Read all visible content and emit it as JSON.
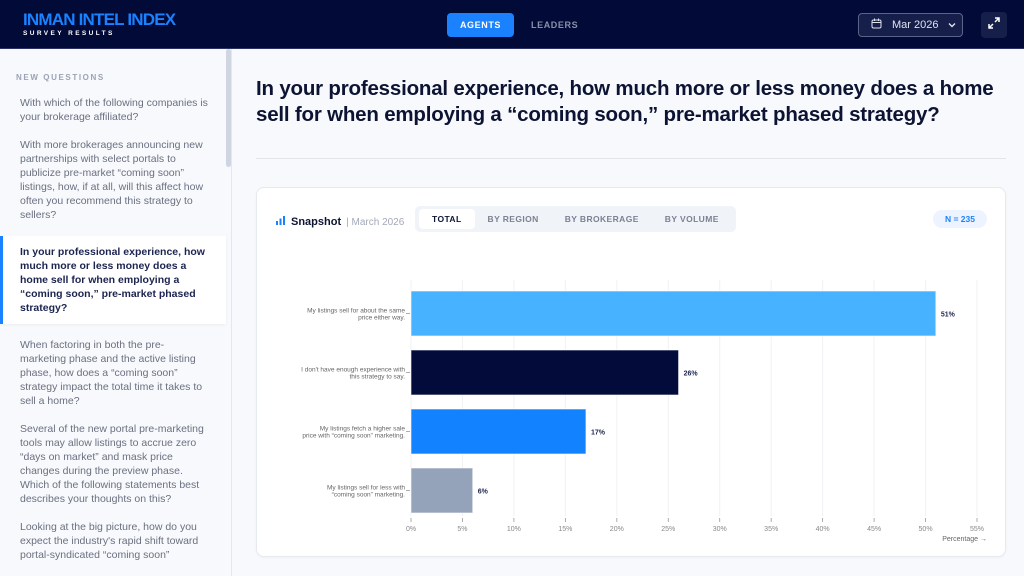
{
  "header": {
    "logo_title": "INMAN INTEL INDEX",
    "logo_subtitle": "SURVEY RESULTS",
    "nav": [
      "AGENTS",
      "LEADERS"
    ],
    "date": "Mar 2026"
  },
  "sidebar": {
    "heading": "NEW QUESTIONS",
    "questions": [
      "With which of the following companies is your brokerage affiliated?",
      "With more brokerages announcing new partnerships with select portals to publicize pre-market “coming soon” listings, how, if at all, will this affect how often you recommend this strategy to sellers?",
      "In your professional experience, how much more or less money does a home sell for when employing a “coming soon,” pre-market phased strategy?",
      "When factoring in both the pre-marketing phase and the active listing phase, how does a “coming soon” strategy impact the total time it takes to sell a home?",
      "Several of the new portal pre-marketing tools may allow listings to accrue zero “days on market” and mask price changes during the preview phase. Which of the following statements best describes your thoughts on this?",
      "Looking at the big picture, how do you expect the industry's rapid shift toward portal-syndicated “coming soon”"
    ],
    "active_index": 2
  },
  "main": {
    "title": "In your professional experience, how much more or less money does a home sell for when employing a “coming soon,” pre-market phased strategy?"
  },
  "card": {
    "snapshot": "Snapshot",
    "date": "| March 2026",
    "tabs": [
      "TOTAL",
      "BY REGION",
      "BY BROKERAGE",
      "BY VOLUME"
    ],
    "n": "N = 235"
  },
  "chart_data": {
    "type": "bar",
    "orientation": "horizontal",
    "categories": [
      [
        "My listings sell for about the same",
        "price either way."
      ],
      [
        "I don't have enough experience with",
        "this strategy to say."
      ],
      [
        "My listings fetch a higher sale",
        "price with “coming soon” marketing."
      ],
      [
        "My listings sell for less with",
        "“coming soon” marketing."
      ]
    ],
    "values": [
      51,
      26,
      17,
      6
    ],
    "value_labels": [
      "51%",
      "26%",
      "17%",
      "6%"
    ],
    "colors": [
      "#47b2ff",
      "#030b3b",
      "#1282ff",
      "#94a3ba"
    ],
    "xlim": [
      0,
      55
    ],
    "xticks": [
      "0%",
      "5%",
      "10%",
      "15%",
      "20%",
      "25%",
      "30%",
      "35%",
      "40%",
      "45%",
      "50%",
      "55%"
    ],
    "xlabel": "Percentage →",
    "grid": true
  }
}
